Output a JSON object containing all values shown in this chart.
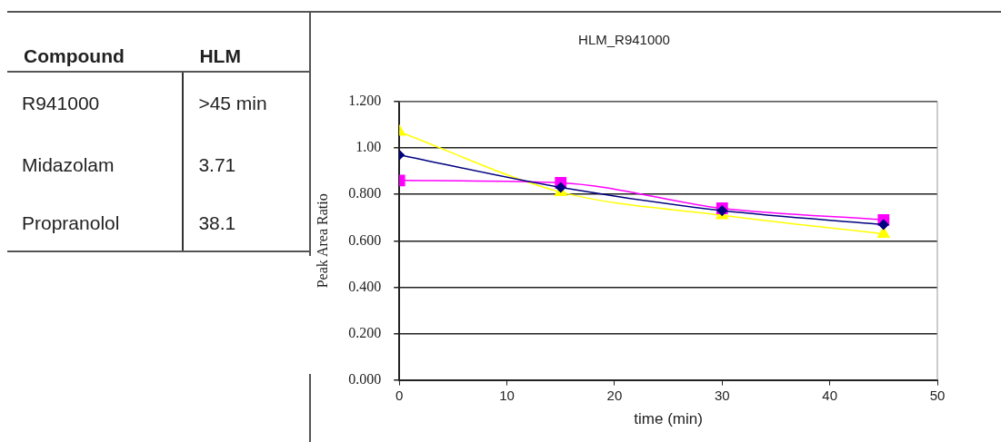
{
  "chart_data": [
    {
      "type": "other",
      "xlabel": "Compound",
      "ylabel": "HLM",
      "categories": [
        "R941000",
        "Midazolam",
        "Propranolol"
      ],
      "value_labels": [
        ">45 min",
        "3.71",
        "38.1"
      ]
    },
    {
      "type": "line",
      "title": "HLM_R941000",
      "xlabel": "time (min)",
      "ylabel": "Peak Area Ratio",
      "x": [
        0,
        15,
        30,
        45
      ],
      "xlim": [
        0,
        50
      ],
      "xticks": [
        0,
        10,
        20,
        30,
        40,
        50
      ],
      "ylim": [
        0,
        1.2
      ],
      "yticks": [
        {
          "value": 0,
          "label": "0.000"
        },
        {
          "value": 0.2,
          "label": "0.200"
        },
        {
          "value": 0.4,
          "label": "0.400"
        },
        {
          "value": 0.6,
          "label": "0.600"
        },
        {
          "value": 0.8,
          "label": "0.800"
        },
        {
          "value": 1.0,
          "label": "1.00"
        },
        {
          "value": 1.2,
          "label": "1.200"
        }
      ],
      "grid": "y",
      "legend": false,
      "series": [
        {
          "color": "#000080",
          "marker": "diamond",
          "values": [
            0.97,
            0.83,
            0.73,
            0.67
          ]
        },
        {
          "color": "#ff00ff",
          "marker": "square",
          "values": [
            0.86,
            0.85,
            0.74,
            0.69
          ]
        },
        {
          "color": "#ffff00",
          "marker": "triangle",
          "values": [
            1.07,
            0.81,
            0.71,
            0.63
          ]
        }
      ]
    }
  ]
}
